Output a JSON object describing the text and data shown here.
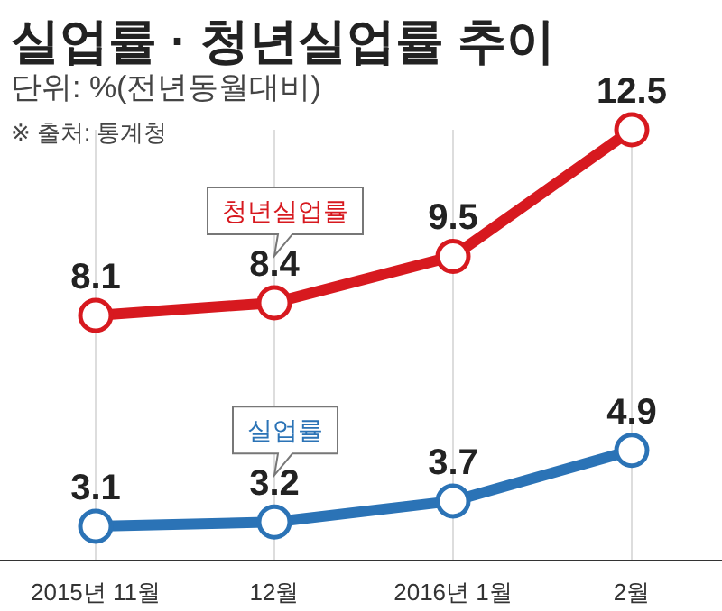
{
  "chart_data": {
    "type": "line",
    "title": "실업률 · 청년실업률 추이",
    "subtitle": "단위: %(전년동월대비)",
    "annotations": [
      "※ 출처: 통계청"
    ],
    "categories": [
      "2015년 11월",
      "12월",
      "2016년 1월",
      "2월"
    ],
    "series": [
      {
        "name": "청년실업률",
        "color": "#d7191f",
        "values": [
          8.1,
          8.4,
          9.5,
          12.5
        ]
      },
      {
        "name": "실업률",
        "color": "#2b73b6",
        "values": [
          3.1,
          3.2,
          3.7,
          4.9
        ]
      }
    ],
    "data_labels": true,
    "marker": "circle",
    "grid": "x"
  }
}
